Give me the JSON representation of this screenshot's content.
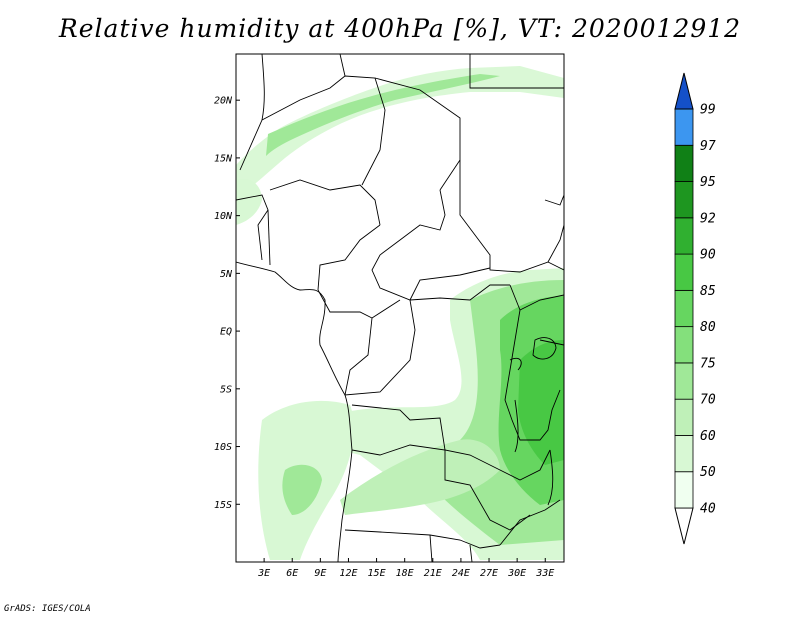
{
  "title": "Relative humidity at 400hPa [%], VT: 2020012912",
  "credit": "GrADS: IGES/COLA",
  "map": {
    "lon_range": [
      0,
      35
    ],
    "lat_range": [
      -20,
      24
    ],
    "lat_ticks": [
      {
        "value": 20,
        "label": "20N"
      },
      {
        "value": 15,
        "label": "15N"
      },
      {
        "value": 10,
        "label": "10N"
      },
      {
        "value": 5,
        "label": "5N"
      },
      {
        "value": 0,
        "label": "EQ"
      },
      {
        "value": -5,
        "label": "5S"
      },
      {
        "value": -10,
        "label": "10S"
      },
      {
        "value": -15,
        "label": "15S"
      }
    ],
    "lon_ticks": [
      {
        "value": 3,
        "label": "3E"
      },
      {
        "value": 6,
        "label": "6E"
      },
      {
        "value": 9,
        "label": "9E"
      },
      {
        "value": 12,
        "label": "12E"
      },
      {
        "value": 15,
        "label": "15E"
      },
      {
        "value": 18,
        "label": "18E"
      },
      {
        "value": 21,
        "label": "21E"
      },
      {
        "value": 24,
        "label": "24E"
      },
      {
        "value": 27,
        "label": "27E"
      },
      {
        "value": 30,
        "label": "30E"
      },
      {
        "value": 33,
        "label": "33E"
      }
    ]
  },
  "colorbar": {
    "levels": [
      {
        "label": "40",
        "color": "#f0fff0"
      },
      {
        "label": "50",
        "color": "#d8f8d4"
      },
      {
        "label": "60",
        "color": "#bff0b8"
      },
      {
        "label": "70",
        "color": "#a0e898"
      },
      {
        "label": "75",
        "color": "#84e07c"
      },
      {
        "label": "80",
        "color": "#66d660"
      },
      {
        "label": "85",
        "color": "#48c844"
      },
      {
        "label": "90",
        "color": "#30b030"
      },
      {
        "label": "92",
        "color": "#1e9620"
      },
      {
        "label": "95",
        "color": "#108016"
      },
      {
        "label": "97",
        "color": "#3c96f0"
      },
      {
        "label": "99",
        "color": "#1e6ee0"
      }
    ],
    "top_color": "#1450c8",
    "bottom_color": "#ffffff"
  }
}
